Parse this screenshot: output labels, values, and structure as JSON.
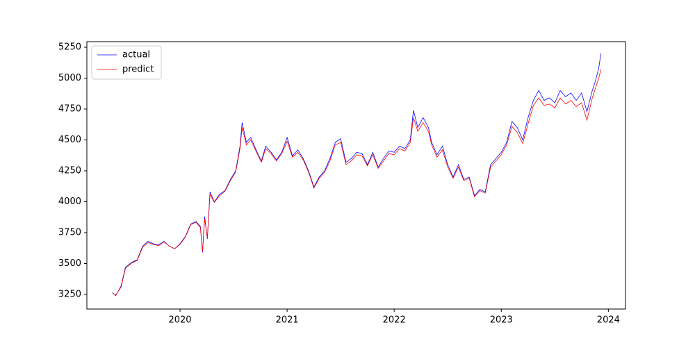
{
  "chart_data": {
    "type": "line",
    "x": [
      2019.37,
      2019.4,
      2019.45,
      2019.49,
      2019.55,
      2019.6,
      2019.65,
      2019.7,
      2019.75,
      2019.8,
      2019.85,
      2019.9,
      2019.95,
      2020.0,
      2020.05,
      2020.1,
      2020.15,
      2020.19,
      2020.21,
      2020.23,
      2020.255,
      2020.28,
      2020.32,
      2020.37,
      2020.42,
      2020.47,
      2020.52,
      2020.56,
      2020.58,
      2020.62,
      2020.66,
      2020.72,
      2020.76,
      2020.8,
      2020.85,
      2020.9,
      2020.95,
      2021.0,
      2021.05,
      2021.1,
      2021.15,
      2021.2,
      2021.25,
      2021.3,
      2021.35,
      2021.4,
      2021.45,
      2021.5,
      2021.55,
      2021.6,
      2021.65,
      2021.7,
      2021.75,
      2021.8,
      2021.85,
      2021.9,
      2021.95,
      2022.0,
      2022.05,
      2022.1,
      2022.15,
      2022.18,
      2022.22,
      2022.27,
      2022.32,
      2022.35,
      2022.4,
      2022.45,
      2022.5,
      2022.55,
      2022.6,
      2022.65,
      2022.7,
      2022.75,
      2022.8,
      2022.85,
      2022.9,
      2022.95,
      2023.0,
      2023.05,
      2023.1,
      2023.15,
      2023.2,
      2023.25,
      2023.3,
      2023.35,
      2023.4,
      2023.45,
      2023.5,
      2023.55,
      2023.6,
      2023.65,
      2023.7,
      2023.75,
      2023.8,
      2023.85,
      2023.88,
      2023.91,
      2023.93
    ],
    "series": [
      {
        "name": "actual",
        "color": "#0000ff",
        "values": [
          3265,
          3240,
          3320,
          3470,
          3510,
          3530,
          3640,
          3680,
          3660,
          3650,
          3680,
          3640,
          3620,
          3660,
          3720,
          3820,
          3840,
          3800,
          3590,
          3880,
          3700,
          4080,
          4000,
          4060,
          4090,
          4180,
          4250,
          4450,
          4640,
          4480,
          4520,
          4400,
          4330,
          4450,
          4400,
          4340,
          4400,
          4520,
          4370,
          4420,
          4350,
          4250,
          4120,
          4200,
          4250,
          4350,
          4480,
          4510,
          4320,
          4350,
          4400,
          4390,
          4300,
          4400,
          4280,
          4350,
          4410,
          4400,
          4450,
          4430,
          4500,
          4740,
          4600,
          4680,
          4600,
          4480,
          4380,
          4450,
          4300,
          4200,
          4300,
          4180,
          4200,
          4050,
          4100,
          4080,
          4300,
          4350,
          4400,
          4480,
          4650,
          4600,
          4500,
          4680,
          4820,
          4900,
          4820,
          4840,
          4800,
          4900,
          4850,
          4880,
          4820,
          4880,
          4730,
          4900,
          4980,
          5080,
          5200
        ]
      },
      {
        "name": "predict",
        "color": "#ff0000",
        "values": [
          3260,
          3245,
          3310,
          3460,
          3505,
          3525,
          3630,
          3670,
          3655,
          3645,
          3675,
          3640,
          3620,
          3655,
          3715,
          3815,
          3835,
          3790,
          3600,
          3860,
          3710,
          4060,
          3995,
          4050,
          4085,
          4170,
          4240,
          4430,
          4600,
          4460,
          4500,
          4390,
          4320,
          4430,
          4390,
          4330,
          4390,
          4490,
          4360,
          4400,
          4340,
          4240,
          4110,
          4190,
          4240,
          4330,
          4460,
          4480,
          4300,
          4330,
          4380,
          4370,
          4290,
          4380,
          4270,
          4330,
          4390,
          4380,
          4430,
          4410,
          4480,
          4680,
          4570,
          4640,
          4570,
          4460,
          4360,
          4420,
          4280,
          4190,
          4280,
          4170,
          4190,
          4040,
          4090,
          4070,
          4280,
          4330,
          4380,
          4460,
          4610,
          4560,
          4470,
          4630,
          4780,
          4840,
          4780,
          4790,
          4760,
          4840,
          4790,
          4820,
          4770,
          4800,
          4660,
          4840,
          4920,
          5000,
          5070
        ]
      }
    ],
    "xlim": [
      2019.13,
      2024.16
    ],
    "xticks": [
      2020,
      2021,
      2022,
      2023,
      2024
    ],
    "ylim": [
      3132,
      5295
    ],
    "yticks": [
      3250,
      3500,
      3750,
      4000,
      4250,
      4500,
      4750,
      5000,
      5250
    ],
    "legend": "upper left"
  }
}
